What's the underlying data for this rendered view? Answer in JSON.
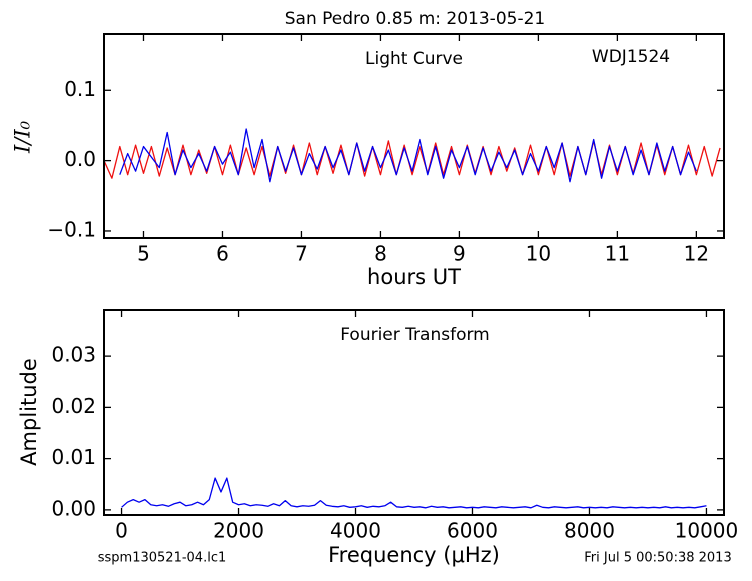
{
  "title": "San Pedro 0.85 m:  2013-05-21",
  "footer_left": "sspm130521-04.lc1",
  "footer_right": "Fri Jul  5 00:50:38 2013",
  "chart_data": [
    {
      "type": "line",
      "annotations": [
        "Light Curve",
        "WDJ1524"
      ],
      "xlabel": "hours UT",
      "ylabel": "I/I₀",
      "xlim": [
        4.5,
        12.35
      ],
      "ylim": [
        -0.11,
        0.18
      ],
      "xticks": [
        5,
        6,
        7,
        8,
        9,
        10,
        11,
        12
      ],
      "yticks": [
        {
          "value": -0.1,
          "label": "−0.1"
        },
        {
          "value": 0.0,
          "label": "0.0"
        },
        {
          "value": 0.1,
          "label": "0.1"
        }
      ],
      "series": [
        {
          "color": "#ee1111",
          "x": [
            4.5,
            4.6,
            4.7,
            4.8,
            4.9,
            5.0,
            5.1,
            5.2,
            5.3,
            5.4,
            5.5,
            5.6,
            5.7,
            5.8,
            5.9,
            6.0,
            6.1,
            6.2,
            6.3,
            6.4,
            6.5,
            6.6,
            6.7,
            6.8,
            6.9,
            7.0,
            7.1,
            7.2,
            7.3,
            7.4,
            7.5,
            7.6,
            7.7,
            7.8,
            7.9,
            8.0,
            8.1,
            8.2,
            8.3,
            8.4,
            8.5,
            8.6,
            8.7,
            8.8,
            8.9,
            9.0,
            9.1,
            9.2,
            9.3,
            9.4,
            9.5,
            9.6,
            9.7,
            9.8,
            9.9,
            10.0,
            10.1,
            10.2,
            10.3,
            10.4,
            10.5,
            10.6,
            10.7,
            10.8,
            10.9,
            11.0,
            11.1,
            11.2,
            11.3,
            11.4,
            11.5,
            11.6,
            11.7,
            11.8,
            11.9,
            12.0,
            12.1,
            12.2,
            12.3
          ],
          "values": [
            0.0,
            -0.025,
            0.02,
            -0.02,
            0.022,
            -0.018,
            0.02,
            -0.022,
            0.018,
            -0.02,
            0.022,
            -0.02,
            0.015,
            -0.018,
            0.02,
            -0.02,
            0.022,
            -0.02,
            0.018,
            -0.02,
            0.02,
            -0.022,
            0.02,
            -0.018,
            0.022,
            -0.02,
            0.025,
            -0.02,
            0.02,
            -0.018,
            0.022,
            -0.02,
            0.025,
            -0.022,
            0.02,
            -0.02,
            0.028,
            -0.02,
            0.022,
            -0.02,
            0.02,
            -0.018,
            0.025,
            -0.02,
            0.02,
            -0.02,
            0.022,
            -0.018,
            0.02,
            -0.02,
            0.02,
            -0.015,
            0.018,
            -0.02,
            0.022,
            -0.02,
            0.02,
            -0.02,
            0.025,
            -0.022,
            0.02,
            -0.02,
            0.028,
            -0.02,
            0.022,
            -0.02,
            0.02,
            -0.018,
            0.025,
            -0.02,
            0.022,
            -0.02,
            0.02,
            -0.02,
            0.022,
            -0.02,
            0.02,
            -0.022,
            0.018
          ]
        },
        {
          "color": "#0000ee",
          "x": [
            4.7,
            4.8,
            4.9,
            5.0,
            5.1,
            5.2,
            5.3,
            5.4,
            5.5,
            5.6,
            5.7,
            5.8,
            5.9,
            6.0,
            6.1,
            6.2,
            6.3,
            6.4,
            6.5,
            6.6,
            6.7,
            6.8,
            6.9,
            7.0,
            7.1,
            7.2,
            7.3,
            7.4,
            7.5,
            7.6,
            7.7,
            7.8,
            7.9,
            8.0,
            8.1,
            8.2,
            8.3,
            8.4,
            8.5,
            8.6,
            8.7,
            8.8,
            8.9,
            9.0,
            9.1,
            9.2,
            9.3,
            9.4,
            9.5,
            9.6,
            9.7,
            9.8,
            9.9,
            10.0,
            10.1,
            10.2,
            10.3,
            10.4,
            10.5,
            10.6,
            10.7,
            10.8,
            10.9,
            11.0,
            11.1,
            11.2,
            11.3,
            11.4,
            11.5,
            11.6,
            11.7,
            11.8,
            11.9,
            12.0
          ],
          "values": [
            -0.02,
            0.01,
            -0.015,
            0.02,
            0.005,
            -0.01,
            0.04,
            -0.02,
            0.015,
            -0.01,
            0.01,
            -0.015,
            0.02,
            -0.005,
            0.012,
            -0.02,
            0.045,
            -0.01,
            0.03,
            -0.03,
            0.02,
            -0.015,
            0.018,
            -0.02,
            0.01,
            -0.012,
            0.02,
            -0.01,
            0.015,
            -0.02,
            0.025,
            -0.015,
            0.02,
            -0.01,
            0.015,
            -0.02,
            0.018,
            -0.015,
            0.03,
            -0.02,
            0.02,
            -0.025,
            0.015,
            -0.01,
            0.02,
            -0.02,
            0.018,
            -0.015,
            0.012,
            -0.01,
            0.015,
            -0.02,
            0.01,
            -0.015,
            0.02,
            -0.01,
            0.025,
            -0.03,
            0.02,
            -0.02,
            0.03,
            -0.025,
            0.02,
            -0.015,
            0.02,
            -0.02,
            0.015,
            -0.02,
            0.025,
            -0.015,
            0.02,
            -0.02,
            0.012,
            -0.015
          ]
        }
      ]
    },
    {
      "type": "line",
      "annotations": [
        "Fourier Transform"
      ],
      "xlabel": "Frequency (μHz)",
      "ylabel": "Amplitude",
      "xlim": [
        -300,
        10300
      ],
      "ylim": [
        -0.001,
        0.039
      ],
      "xticks": [
        0,
        2000,
        4000,
        6000,
        8000,
        10000
      ],
      "yticks": [
        {
          "value": 0,
          "label": "0.00"
        },
        {
          "value": 0.01,
          "label": "0.01"
        },
        {
          "value": 0.02,
          "label": "0.02"
        },
        {
          "value": 0.03,
          "label": "0.03"
        }
      ],
      "series": [
        {
          "color": "#0000ee",
          "x": [
            0,
            100,
            200,
            300,
            400,
            500,
            600,
            700,
            800,
            900,
            1000,
            1100,
            1200,
            1300,
            1400,
            1500,
            1600,
            1700,
            1800,
            1900,
            2000,
            2100,
            2200,
            2300,
            2400,
            2500,
            2600,
            2700,
            2800,
            2900,
            3000,
            3100,
            3200,
            3300,
            3400,
            3500,
            3600,
            3700,
            3800,
            3900,
            4000,
            4100,
            4200,
            4300,
            4400,
            4500,
            4600,
            4700,
            4800,
            4900,
            5000,
            5100,
            5200,
            5300,
            5400,
            5500,
            5600,
            5700,
            5800,
            5900,
            6000,
            6100,
            6200,
            6300,
            6400,
            6500,
            6600,
            6700,
            6800,
            6900,
            7000,
            7100,
            7200,
            7300,
            7400,
            7500,
            7600,
            7700,
            7800,
            7900,
            8000,
            8100,
            8200,
            8300,
            8400,
            8500,
            8600,
            8700,
            8800,
            8900,
            9000,
            9100,
            9200,
            9300,
            9400,
            9500,
            9600,
            9700,
            9800,
            9900,
            10000
          ],
          "values": [
            0.0005,
            0.0015,
            0.002,
            0.0015,
            0.002,
            0.001,
            0.0008,
            0.001,
            0.0007,
            0.0012,
            0.0015,
            0.0008,
            0.001,
            0.0015,
            0.001,
            0.002,
            0.0062,
            0.0035,
            0.0062,
            0.0015,
            0.001,
            0.0012,
            0.0008,
            0.001,
            0.0009,
            0.0007,
            0.0012,
            0.0008,
            0.0018,
            0.0008,
            0.0006,
            0.0008,
            0.0007,
            0.0009,
            0.0018,
            0.0009,
            0.0007,
            0.0006,
            0.0008,
            0.0005,
            0.0006,
            0.0008,
            0.0005,
            0.0007,
            0.0006,
            0.0008,
            0.0015,
            0.0006,
            0.0005,
            0.0007,
            0.0005,
            0.0006,
            0.0004,
            0.0007,
            0.0005,
            0.0006,
            0.0004,
            0.0005,
            0.0006,
            0.0004,
            0.0005,
            0.0004,
            0.0006,
            0.0005,
            0.0004,
            0.0006,
            0.0005,
            0.0004,
            0.0005,
            0.0006,
            0.0004,
            0.0009,
            0.0005,
            0.0004,
            0.0006,
            0.0005,
            0.0004,
            0.0005,
            0.0006,
            0.0004,
            0.0005,
            0.0004,
            0.0005,
            0.0004,
            0.0006,
            0.0005,
            0.0004,
            0.0005,
            0.0004,
            0.0005,
            0.0004,
            0.0005,
            0.0004,
            0.0006,
            0.0004,
            0.0005,
            0.0004,
            0.0005,
            0.0004,
            0.0006,
            0.0008
          ]
        }
      ]
    }
  ]
}
